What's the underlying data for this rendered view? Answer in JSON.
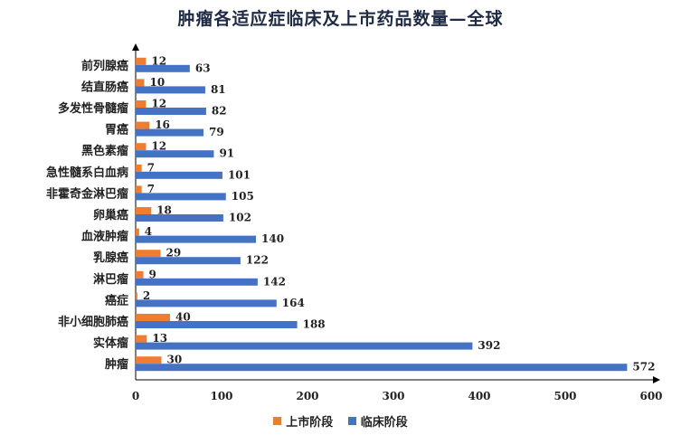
{
  "chart_data": {
    "type": "bar",
    "orientation": "horizontal",
    "title": "肿瘤各适应症临床及上市药品数量—全球",
    "categories": [
      "前列腺癌",
      "结直肠癌",
      "多发性骨髓瘤",
      "胃癌",
      "黑色素瘤",
      "急性髓系白血病",
      "非霍奇金淋巴瘤",
      "卵巢癌",
      "血液肿瘤",
      "乳腺癌",
      "淋巴瘤",
      "癌症",
      "非小细胞肺癌",
      "实体瘤",
      "肿瘤"
    ],
    "series": [
      {
        "name": "上市阶段",
        "color": "#ed7d31",
        "values": [
          12,
          10,
          12,
          16,
          12,
          7,
          7,
          18,
          4,
          29,
          9,
          2,
          40,
          13,
          30
        ]
      },
      {
        "name": "临床阶段",
        "color": "#4472c4",
        "values": [
          63,
          81,
          82,
          79,
          91,
          101,
          105,
          102,
          140,
          122,
          142,
          164,
          188,
          392,
          572
        ]
      }
    ],
    "xlim": [
      0,
      600
    ],
    "xticks": [
      "0",
      "100",
      "200",
      "300",
      "400",
      "500",
      "600"
    ],
    "legend_position": "bottom",
    "grid": false
  }
}
